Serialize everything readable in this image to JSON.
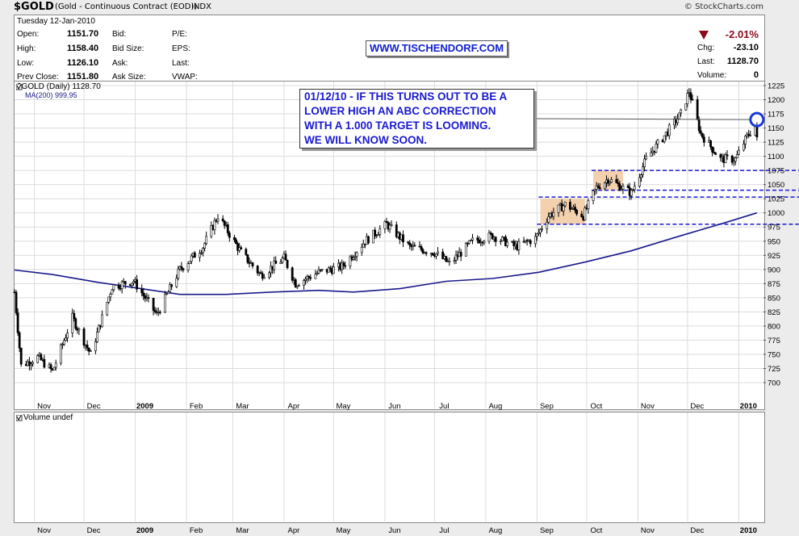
{
  "header": {
    "symbol": "$GOLD",
    "description": "(Gold - Continuous Contract (EOD))",
    "index_tag": "INDX",
    "copyright": "© StockCharts.com"
  },
  "quote": {
    "date": "Tuesday  12-Jan-2010",
    "rows": [
      {
        "label": "Open:",
        "value": "1151.70"
      },
      {
        "label": "High:",
        "value": "1158.40"
      },
      {
        "label": "Low:",
        "value": "1126.10"
      },
      {
        "label": "Prev Close:",
        "value": "1151.80"
      }
    ],
    "col2": [
      "Bid:",
      "Bid Size:",
      "Ask:",
      "Ask Size:"
    ],
    "col3": [
      "P/E:",
      "EPS:",
      "Last:",
      "VWAP:"
    ],
    "pct_change": "-2.01%",
    "right_rows": [
      {
        "label": "Chg:",
        "value": "-23.10"
      },
      {
        "label": "Last:",
        "value": "1128.70"
      },
      {
        "label": "Volume:",
        "value": "0"
      }
    ]
  },
  "site_badge": "WWW.TISCHENDORF.COM",
  "legend": {
    "price": "$GOLD (Daily) 1128.70",
    "ma": "MA(200) 999.95"
  },
  "annotation": {
    "lines": [
      "01/12/10 - IF THIS TURNS OUT TO BE A",
      "LOWER HIGH AN ABC CORRECTION",
      "WITH A 1.000 TARGET IS LOOMING.",
      "WE WILL KNOW SOON."
    ]
  },
  "volume_panel": {
    "title": "Volume undef"
  },
  "colors": {
    "ma_line": "#1a1a8c",
    "annotation": "#1a1ad0",
    "dashed_level": "#1a1ad0",
    "range_box": "#f2c9a0",
    "down_arrow": "#8b0a1e",
    "candle": "#000000"
  },
  "chart_data": {
    "type": "candlestick",
    "symbol": "$GOLD",
    "interval": "Daily",
    "ylim": [
      675,
      1235
    ],
    "yticks": [
      700,
      725,
      750,
      775,
      800,
      825,
      850,
      875,
      900,
      925,
      950,
      975,
      1000,
      1025,
      1050,
      1075,
      1100,
      1125,
      1150,
      1175,
      1200,
      1225
    ],
    "x_tick_labels": [
      "Nov",
      "Dec",
      "2009",
      "Feb",
      "Mar",
      "Apr",
      "May",
      "Jun",
      "Jul",
      "Aug",
      "Sep",
      "Oct",
      "Nov",
      "Dec",
      "2010"
    ],
    "x_range": [
      "2008-10-20",
      "2010-01-14"
    ],
    "x_ticks": [
      "2008-11-01",
      "2008-12-01",
      "2009-01-01",
      "2009-02-01",
      "2009-03-01",
      "2009-04-01",
      "2009-05-01",
      "2009-06-01",
      "2009-07-01",
      "2009-08-01",
      "2009-09-01",
      "2009-10-01",
      "2009-11-01",
      "2009-12-01",
      "2010-01-01"
    ],
    "price_path": [
      [
        "2008-10-20",
        860
      ],
      [
        "2008-10-24",
        730
      ],
      [
        "2008-11-03",
        745
      ],
      [
        "2008-11-12",
        720
      ],
      [
        "2008-11-24",
        815
      ],
      [
        "2008-12-05",
        750
      ],
      [
        "2008-12-18",
        870
      ],
      [
        "2008-12-31",
        880
      ],
      [
        "2009-01-14",
        820
      ],
      [
        "2009-01-28",
        900
      ],
      [
        "2009-02-11",
        940
      ],
      [
        "2009-02-20",
        995
      ],
      [
        "2009-03-06",
        930
      ],
      [
        "2009-03-18",
        890
      ],
      [
        "2009-04-01",
        920
      ],
      [
        "2009-04-08",
        875
      ],
      [
        "2009-04-22",
        895
      ],
      [
        "2009-05-06",
        905
      ],
      [
        "2009-05-20",
        950
      ],
      [
        "2009-06-02",
        980
      ],
      [
        "2009-06-16",
        940
      ],
      [
        "2009-07-01",
        930
      ],
      [
        "2009-07-10",
        910
      ],
      [
        "2009-07-24",
        950
      ],
      [
        "2009-08-05",
        960
      ],
      [
        "2009-08-19",
        940
      ],
      [
        "2009-08-31",
        955
      ],
      [
        "2009-09-08",
        995
      ],
      [
        "2009-09-18",
        1015
      ],
      [
        "2009-09-29",
        995
      ],
      [
        "2009-10-07",
        1045
      ],
      [
        "2009-10-14",
        1060
      ],
      [
        "2009-10-28",
        1035
      ],
      [
        "2009-11-06",
        1095
      ],
      [
        "2009-11-18",
        1140
      ],
      [
        "2009-11-27",
        1175
      ],
      [
        "2009-12-02",
        1215
      ],
      [
        "2009-12-09",
        1140
      ],
      [
        "2009-12-21",
        1095
      ],
      [
        "2009-12-30",
        1095
      ],
      [
        "2010-01-06",
        1135
      ],
      [
        "2010-01-11",
        1155
      ],
      [
        "2010-01-12",
        1128.7
      ]
    ],
    "ma200": {
      "name": "MA(200)",
      "last": 999.95,
      "path": [
        [
          "2008-10-20",
          899
        ],
        [
          "2008-11-12",
          891
        ],
        [
          "2008-12-10",
          877
        ],
        [
          "2009-01-07",
          865
        ],
        [
          "2009-01-28",
          856
        ],
        [
          "2009-02-25",
          856
        ],
        [
          "2009-03-25",
          860
        ],
        [
          "2009-04-22",
          863
        ],
        [
          "2009-05-13",
          860
        ],
        [
          "2009-06-10",
          866
        ],
        [
          "2009-07-08",
          879
        ],
        [
          "2009-08-05",
          884
        ],
        [
          "2009-09-02",
          895
        ],
        [
          "2009-09-30",
          913
        ],
        [
          "2009-10-28",
          933
        ],
        [
          "2009-11-25",
          958
        ],
        [
          "2009-12-23",
          982
        ],
        [
          "2010-01-12",
          999.95
        ]
      ]
    },
    "levels": [
      1075,
      1040,
      1028,
      980
    ],
    "ranges": [
      {
        "from": "2009-09-03",
        "to": "2009-09-30",
        "low": 980,
        "high": 1025
      },
      {
        "from": "2009-10-05",
        "to": "2009-10-23",
        "low": 1040,
        "high": 1075
      }
    ],
    "highlight": {
      "date": "2010-01-11",
      "value": 1162
    }
  }
}
